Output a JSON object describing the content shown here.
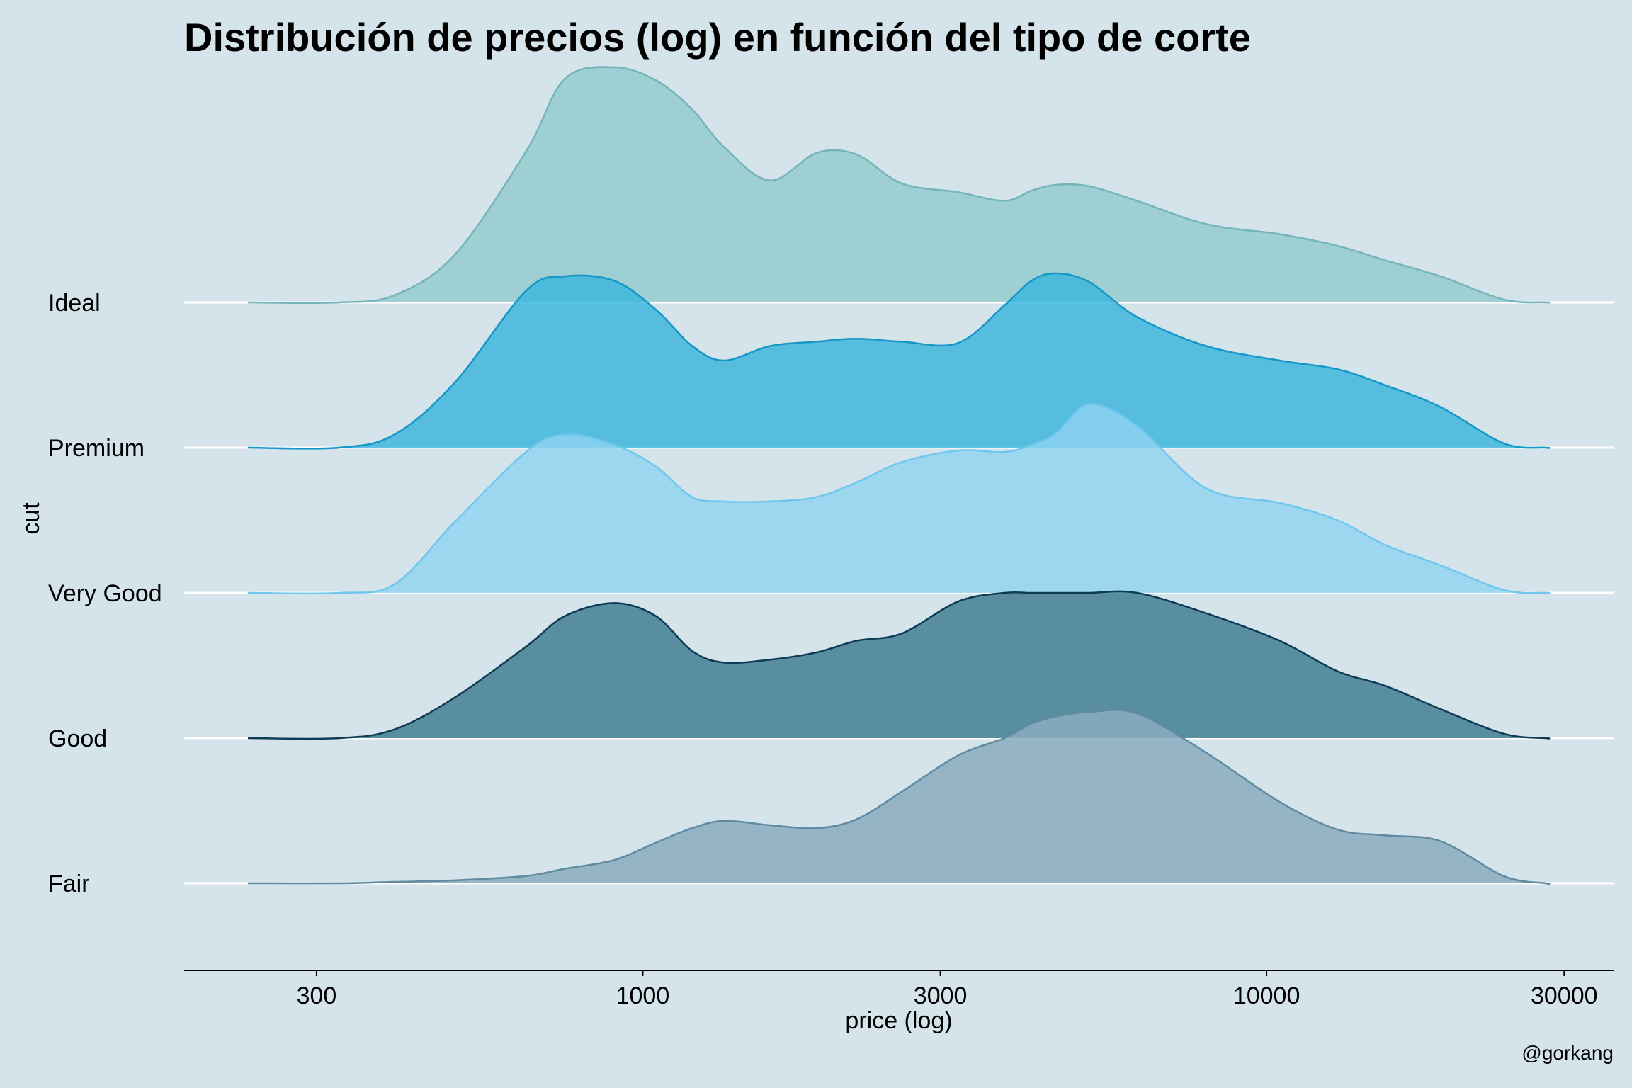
{
  "chart_data": {
    "type": "ridgeline",
    "title": "Distribución de precios (log) en función del tipo de corte",
    "xlabel": "price (log)",
    "ylabel": "cut",
    "caption": "@gorkang",
    "x_scale": "log10",
    "xlim": [
      184,
      36000
    ],
    "x_ticks": [
      300,
      1000,
      3000,
      10000,
      30000
    ],
    "x_tick_labels": [
      "300",
      "1000",
      "3000",
      "10000",
      "30000"
    ],
    "categories": [
      "Fair",
      "Good",
      "Very Good",
      "Premium",
      "Ideal"
    ],
    "series": [
      {
        "name": "Fair",
        "fill": "#8aadbf",
        "stroke": "#5f8aa0",
        "opacity": 0.85,
        "x": [
          326,
          400,
          500,
          650,
          750,
          900,
          1050,
          1200,
          1350,
          1600,
          1900,
          2200,
          2600,
          3200,
          3800,
          4200,
          4600,
          5200,
          6200,
          8000,
          10500,
          13000,
          15500,
          19000,
          24000,
          28000
        ],
        "density": [
          0.0,
          0.01,
          0.02,
          0.05,
          0.1,
          0.16,
          0.28,
          0.38,
          0.43,
          0.4,
          0.38,
          0.44,
          0.63,
          0.88,
          1.0,
          1.1,
          1.15,
          1.18,
          1.17,
          0.9,
          0.56,
          0.37,
          0.33,
          0.29,
          0.05,
          0.0
        ]
      },
      {
        "name": "Good",
        "fill": "#437f94",
        "stroke": "#0d3b53",
        "opacity": 0.85,
        "x": [
          326,
          400,
          500,
          650,
          750,
          900,
          1050,
          1200,
          1350,
          1600,
          1900,
          2200,
          2600,
          3200,
          3800,
          4200,
          4600,
          5200,
          6200,
          8000,
          10500,
          13000,
          15500,
          19000,
          24000,
          28000
        ],
        "density": [
          0.0,
          0.06,
          0.28,
          0.63,
          0.84,
          0.93,
          0.84,
          0.6,
          0.52,
          0.54,
          0.59,
          0.67,
          0.72,
          0.94,
          1.0,
          1.0,
          1.0,
          1.0,
          1.0,
          0.86,
          0.67,
          0.46,
          0.36,
          0.2,
          0.03,
          0.0
        ]
      },
      {
        "name": "Very Good",
        "fill": "#8fd3f0",
        "stroke": "#6ec7ee",
        "opacity": 0.8,
        "x": [
          326,
          400,
          500,
          650,
          750,
          900,
          1050,
          1200,
          1350,
          1600,
          1900,
          2200,
          2600,
          3200,
          3800,
          4200,
          4600,
          5200,
          6200,
          8000,
          10500,
          13000,
          15500,
          19000,
          24000,
          28000
        ],
        "density": [
          0.0,
          0.06,
          0.49,
          0.97,
          1.09,
          1.02,
          0.87,
          0.66,
          0.63,
          0.63,
          0.66,
          0.76,
          0.9,
          0.98,
          0.97,
          1.02,
          1.1,
          1.3,
          1.15,
          0.72,
          0.62,
          0.5,
          0.33,
          0.19,
          0.02,
          0.0
        ]
      },
      {
        "name": "Premium",
        "fill": "#3ab4dc",
        "stroke": "#1597c7",
        "opacity": 0.82,
        "x": [
          326,
          400,
          500,
          650,
          750,
          900,
          1050,
          1200,
          1350,
          1600,
          1900,
          2200,
          2600,
          3200,
          3800,
          4200,
          4600,
          5200,
          6200,
          8000,
          10500,
          13000,
          15500,
          19000,
          24000,
          28000
        ],
        "density": [
          0.0,
          0.09,
          0.45,
          1.08,
          1.18,
          1.15,
          0.95,
          0.7,
          0.6,
          0.7,
          0.73,
          0.75,
          0.73,
          0.72,
          0.98,
          1.15,
          1.2,
          1.14,
          0.9,
          0.7,
          0.6,
          0.54,
          0.43,
          0.28,
          0.03,
          0.0
        ]
      },
      {
        "name": "Ideal",
        "fill": "#93cbcf",
        "stroke": "#74b5b9",
        "opacity": 0.85,
        "x": [
          326,
          400,
          500,
          650,
          750,
          900,
          1050,
          1200,
          1350,
          1600,
          1900,
          2200,
          2600,
          3200,
          3800,
          4200,
          4600,
          5200,
          6200,
          8000,
          10500,
          13000,
          15500,
          19000,
          24000,
          28000
        ],
        "density": [
          0.0,
          0.05,
          0.33,
          1.04,
          1.54,
          1.62,
          1.53,
          1.33,
          1.07,
          0.84,
          1.03,
          1.02,
          0.82,
          0.76,
          0.7,
          0.77,
          0.81,
          0.8,
          0.7,
          0.54,
          0.47,
          0.39,
          0.29,
          0.18,
          0.02,
          0.0
        ]
      }
    ],
    "grid": false,
    "legend": "none"
  }
}
